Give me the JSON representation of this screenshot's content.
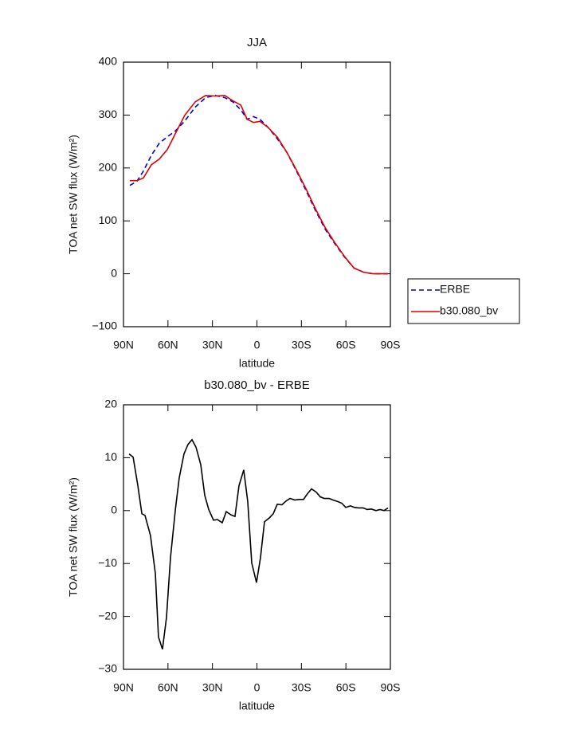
{
  "chart_data": [
    {
      "type": "line",
      "title": "JJA",
      "xlabel": "latitude",
      "ylabel": "TOA net SW flux (W/m²)",
      "xlim": [
        90,
        -90
      ],
      "xticks": [
        {
          "value": 90,
          "label": "90N"
        },
        {
          "value": 60,
          "label": "60N"
        },
        {
          "value": 30,
          "label": "30N"
        },
        0,
        {
          "value": -30,
          "label": "30S"
        },
        {
          "value": -60,
          "label": "60S"
        },
        {
          "value": -90,
          "label": "90S"
        }
      ],
      "ylim": [
        -100,
        400
      ],
      "yticks": [
        -100,
        0,
        100,
        200,
        300,
        400
      ],
      "legend": "outside right",
      "x": [
        85.7,
        80.9,
        76.6,
        71.2,
        65.8,
        60.4,
        55,
        48.6,
        41.6,
        34.6,
        28.1,
        21.7,
        16.3,
        10.9,
        6.6,
        2.3,
        -2.0,
        -7.4,
        -13.8,
        -20.3,
        -26.7,
        -33.2,
        -39.6,
        -46.1,
        -52.5,
        -59,
        -65.4,
        -71.9,
        -78.3,
        -88.4
      ],
      "series": [
        {
          "name": "ERBE",
          "color": "#0000cc",
          "linestyle": "dashed",
          "values": [
            167,
            175,
            194,
            224,
            247,
            259,
            270,
            289,
            315,
            333,
            337,
            333,
            325,
            310,
            292,
            297,
            292,
            277,
            255,
            229,
            194,
            157,
            119,
            84,
            57,
            32,
            11,
            3,
            0,
            0
          ]
        },
        {
          "name": "b30.080_bv",
          "color": "#e00000",
          "linestyle": "solid",
          "values": [
            176,
            176,
            181,
            206,
            217,
            235,
            265,
            300,
            325,
            337,
            336,
            337,
            327,
            319,
            292,
            286,
            288,
            277,
            258,
            229,
            196,
            160,
            122,
            87,
            59,
            33,
            11,
            3,
            0,
            0
          ]
        }
      ]
    },
    {
      "type": "line",
      "title": "b30.080_bv - ERBE",
      "xlabel": "latitude",
      "ylabel": "TOA net SW flux (W/m²)",
      "xlim": [
        90,
        -90
      ],
      "xticks": [
        {
          "value": 90,
          "label": "90N"
        },
        {
          "value": 60,
          "label": "60N"
        },
        {
          "value": 30,
          "label": "30N"
        },
        0,
        {
          "value": -30,
          "label": "30S"
        },
        {
          "value": -60,
          "label": "60S"
        },
        {
          "value": -90,
          "label": "90S"
        }
      ],
      "ylim": [
        -30,
        20
      ],
      "yticks": [
        -30,
        -20,
        -10,
        0,
        10,
        20
      ],
      "x": [
        86.2,
        83.5,
        80.3,
        77.6,
        75.5,
        71.8,
        68.5,
        66.4,
        63.7,
        61,
        58.3,
        55,
        52.4,
        49.2,
        46.5,
        43.8,
        41.1,
        37.9,
        35.2,
        32.5,
        29.3,
        26.6,
        23.4,
        20.7,
        17.5,
        14.8,
        12.1,
        8.9,
        6.2,
        3.5,
        0.3,
        -2.4,
        -5.1,
        -8.3,
        -11,
        -13.7,
        -16.9,
        -19.6,
        -22.3,
        -25.5,
        -28.2,
        -31.4,
        -34.1,
        -36.8,
        -40,
        -42.7,
        -45.4,
        -48.6,
        -51.3,
        -54.6,
        -57.2,
        -59.9,
        -63.1,
        -65.8,
        -68.5,
        -71.7,
        -74.4,
        -77.1,
        -80.3,
        -83,
        -85.7,
        -88.4
      ],
      "series": [
        {
          "color": "#000000",
          "linestyle": "solid",
          "values": [
            10.7,
            10.1,
            4.7,
            -0.6,
            -0.9,
            -4.7,
            -11.9,
            -23.9,
            -26.2,
            -20.2,
            -8.9,
            0.2,
            6.2,
            10.7,
            12.5,
            13.4,
            12,
            8.7,
            2.9,
            0.2,
            -1.8,
            -1.7,
            -2.3,
            -0.2,
            -0.8,
            -1.1,
            4.7,
            7.7,
            1.7,
            -9.9,
            -13.6,
            -8.9,
            -2.1,
            -1.4,
            -0.6,
            1.2,
            1.1,
            1.8,
            2.3,
            2,
            2.1,
            2.1,
            3.2,
            4.1,
            3.5,
            2.6,
            2.3,
            2.3,
            2,
            1.7,
            1.4,
            0.6,
            0.9,
            0.6,
            0.5,
            0.5,
            0.2,
            0.3,
            0,
            0.2,
            0,
            0.5
          ]
        }
      ]
    }
  ]
}
